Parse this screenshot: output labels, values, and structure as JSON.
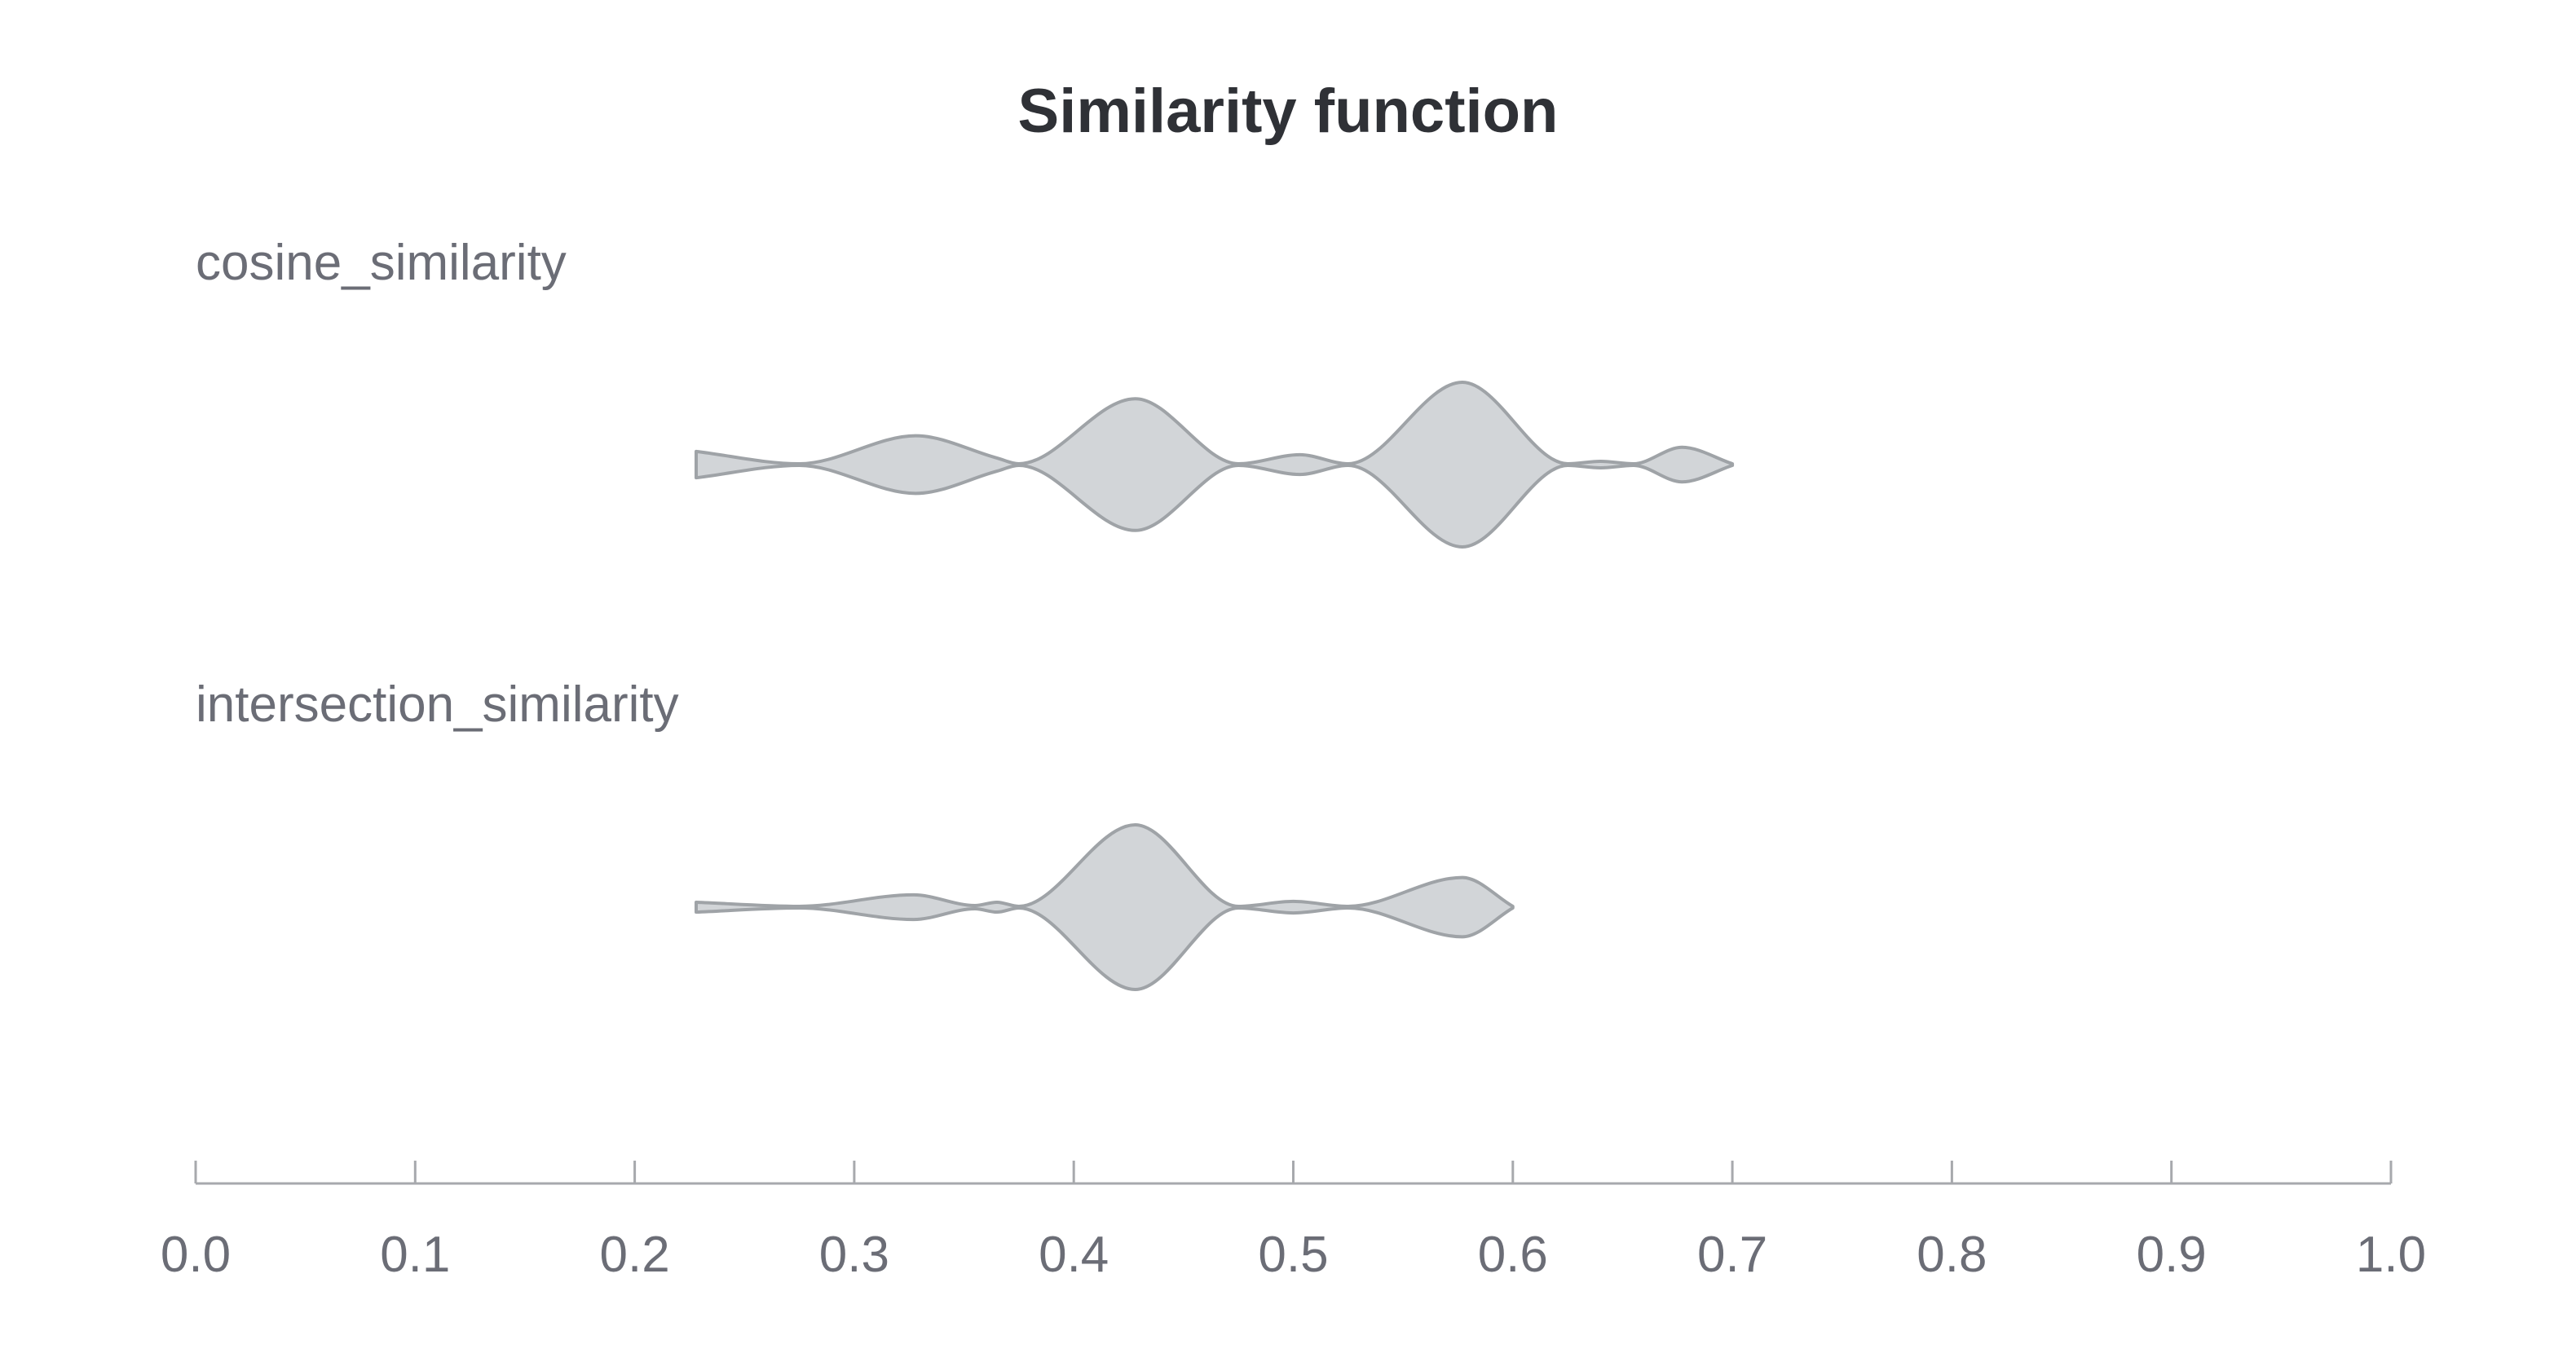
{
  "chart_data": {
    "type": "violin",
    "orientation": "horizontal",
    "title": "Similarity function",
    "xlabel": "",
    "ylabel": "",
    "xlim": [
      0.0,
      1.0
    ],
    "ticks": [
      "0.0",
      "0.1",
      "0.2",
      "0.3",
      "0.4",
      "0.5",
      "0.6",
      "0.7",
      "0.8",
      "0.9",
      "1.0"
    ],
    "grid": false,
    "legend": "none",
    "colors": {
      "fill": "#d2d5d8",
      "stroke": "#9fa3a7",
      "axis": "#a7a9ad",
      "text": "#6b6d76",
      "title": "#2f3136"
    },
    "series": [
      {
        "name": "cosine_similarity",
        "density": [
          [
            0.228,
            0.16
          ],
          [
            0.275,
            0.01
          ],
          [
            0.328,
            0.35
          ],
          [
            0.365,
            0.08
          ],
          [
            0.375,
            0.01
          ],
          [
            0.428,
            0.8
          ],
          [
            0.475,
            0.01
          ],
          [
            0.503,
            0.12
          ],
          [
            0.525,
            0.01
          ],
          [
            0.577,
            1.0
          ],
          [
            0.625,
            0.01
          ],
          [
            0.64,
            0.04
          ],
          [
            0.655,
            0.01
          ],
          [
            0.677,
            0.21
          ],
          [
            0.7,
            0.01
          ]
        ]
      },
      {
        "name": "intersection_similarity",
        "density": [
          [
            0.228,
            0.06
          ],
          [
            0.275,
            0.01
          ],
          [
            0.327,
            0.15
          ],
          [
            0.355,
            0.02
          ],
          [
            0.365,
            0.06
          ],
          [
            0.375,
            0.01
          ],
          [
            0.428,
            1.0
          ],
          [
            0.475,
            0.01
          ],
          [
            0.5,
            0.07
          ],
          [
            0.525,
            0.01
          ],
          [
            0.577,
            0.36
          ],
          [
            0.6,
            0.01
          ]
        ]
      }
    ]
  }
}
